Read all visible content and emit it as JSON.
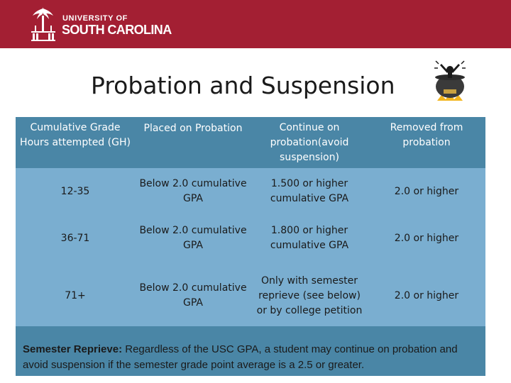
{
  "header": {
    "logo_line1": "UNIVERSITY OF",
    "logo_line2": "SOUTH CAROLINA",
    "banner_color": "#a31f33"
  },
  "slide": {
    "title": "Probation and Suspension",
    "mascot_icon": "cauldron-mascot-icon"
  },
  "table": {
    "accent_dark": "#4a86a6",
    "accent_light": "#7aaed0",
    "headers": [
      "Cumulative Grade Hours attempted (GH)",
      "Placed on Probation",
      "Continue on probation(avoid suspension)",
      "Removed from probation"
    ],
    "rows": [
      [
        "12-35",
        "Below 2.0 cumulative GPA",
        "1.500 or higher cumulative GPA",
        "2.0 or higher"
      ],
      [
        "36-71",
        "Below 2.0 cumulative GPA",
        "1.800 or higher cumulative GPA",
        "2.0 or higher"
      ],
      [
        "71+",
        "Below 2.0 cumulative GPA",
        "Only with semester reprieve (see below) or by college petition",
        "2.0 or higher"
      ]
    ]
  },
  "note": {
    "label": "Semester Reprieve:",
    "text": " Regardless of the USC GPA, a student may continue on probation and avoid suspension if the semester grade point average is a 2.5 or greater."
  }
}
